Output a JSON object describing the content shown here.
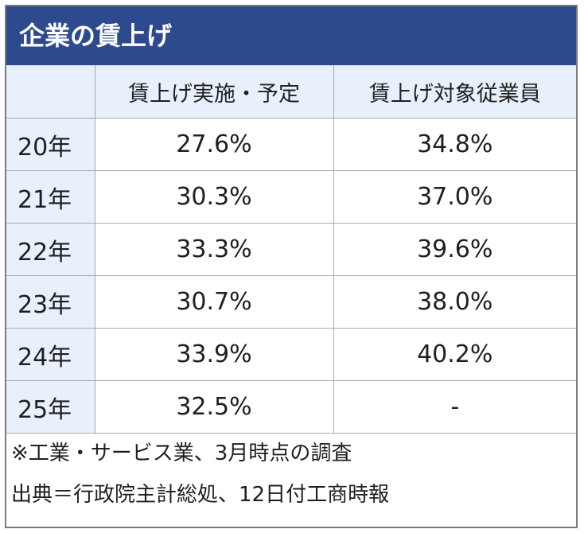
{
  "title": "企業の賃上げ",
  "chart_data": {
    "type": "table",
    "columns": [
      "",
      "賃上げ実施・予定",
      "賃上げ対象従業員"
    ],
    "rows": [
      {
        "year": "20年",
        "values": [
          "27.6%",
          "34.8%"
        ]
      },
      {
        "year": "21年",
        "values": [
          "30.3%",
          "37.0%"
        ]
      },
      {
        "year": "22年",
        "values": [
          "33.3%",
          "39.6%"
        ]
      },
      {
        "year": "23年",
        "values": [
          "30.7%",
          "38.0%"
        ]
      },
      {
        "year": "24年",
        "values": [
          "33.9%",
          "40.2%"
        ]
      },
      {
        "year": "25年",
        "values": [
          "32.5%",
          "-"
        ]
      }
    ]
  },
  "notes": [
    "※工業・サービス業、3月時点の調査",
    "出典＝行政院主計総処、12日付工商時報"
  ],
  "colors": {
    "title_bg": "#2e4a8e",
    "header_bg": "#e8f1fb"
  }
}
